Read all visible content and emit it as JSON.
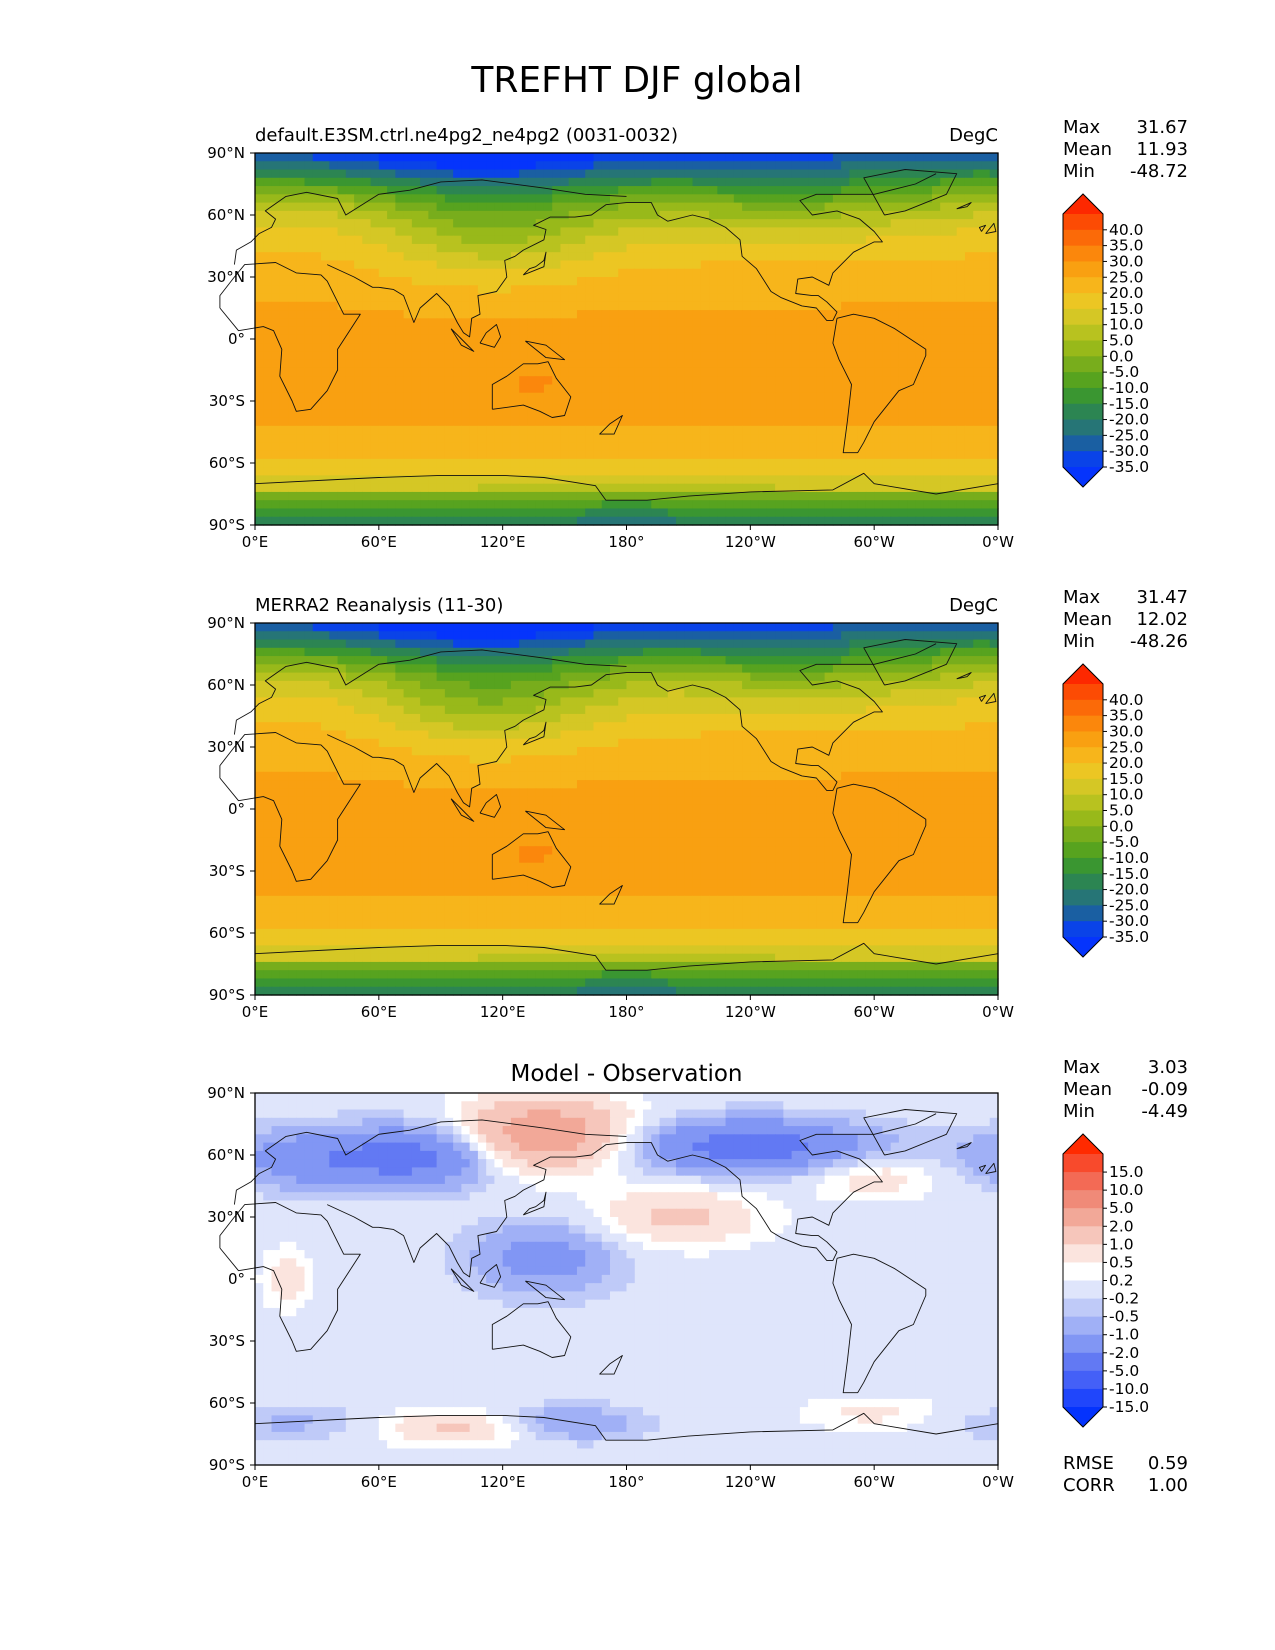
{
  "figure": {
    "title": "TREFHT DJF global"
  },
  "x_ticks": [
    "0°E",
    "60°E",
    "120°E",
    "180°",
    "120°W",
    "60°W",
    "0°W"
  ],
  "y_ticks": [
    "90°N",
    "60°N",
    "30°N",
    "0°",
    "30°S",
    "60°S",
    "90°S"
  ],
  "panels": [
    {
      "id": "test",
      "title_left": "default.E3SM.ctrl.ne4pg2_ne4pg2 (0031-0032)",
      "title_right": "DegC",
      "stats": [
        {
          "label": "Max",
          "value": "31.67"
        },
        {
          "label": "Mean",
          "value": "11.93"
        },
        {
          "label": "Min",
          "value": "-48.72"
        }
      ],
      "colorbar": {
        "labels": [
          "40.0",
          "35.0",
          "30.0",
          "25.0",
          "20.0",
          "15.0",
          "10.0",
          "5.0",
          "0.0",
          "-5.0",
          "-10.0",
          "-15.0",
          "-20.0",
          "-25.0",
          "-30.0",
          "-35.0"
        ],
        "colors": [
          "#fd2800",
          "#fc4b04",
          "#fb6a08",
          "#fb870c",
          "#f9a011",
          "#f7b51b",
          "#ecc623",
          "#d5c725",
          "#b8c21f",
          "#98b91a",
          "#78ad1c",
          "#57a31f",
          "#3a9631",
          "#2c8552",
          "#267576",
          "#1a5fa2",
          "#0a43e8",
          "#0534fc"
        ]
      },
      "variant": 0
    },
    {
      "id": "reference",
      "title_left": "MERRA2 Reanalysis (11-30)",
      "title_right": "DegC",
      "stats": [
        {
          "label": "Max",
          "value": "31.47"
        },
        {
          "label": "Mean",
          "value": "12.02"
        },
        {
          "label": "Min",
          "value": "-48.26"
        }
      ],
      "colorbar": {
        "labels": [
          "40.0",
          "35.0",
          "30.0",
          "25.0",
          "20.0",
          "15.0",
          "10.0",
          "5.0",
          "0.0",
          "-5.0",
          "-10.0",
          "-15.0",
          "-20.0",
          "-25.0",
          "-30.0",
          "-35.0"
        ],
        "colors": [
          "#fd2800",
          "#fc4b04",
          "#fb6a08",
          "#fb870c",
          "#f9a011",
          "#f7b51b",
          "#ecc623",
          "#d5c725",
          "#b8c21f",
          "#98b91a",
          "#78ad1c",
          "#57a31f",
          "#3a9631",
          "#2c8552",
          "#267576",
          "#1a5fa2",
          "#0a43e8",
          "#0534fc"
        ]
      },
      "variant": 1
    },
    {
      "id": "difference",
      "title_center": "Model - Observation",
      "stats": [
        {
          "label": "Max",
          "value": "3.03"
        },
        {
          "label": "Mean",
          "value": "-0.09"
        },
        {
          "label": "Min",
          "value": "-4.49"
        }
      ],
      "colorbar": {
        "labels": [
          "15.0",
          "10.0",
          "5.0",
          "2.0",
          "1.0",
          "0.5",
          "0.2",
          "-0.2",
          "-0.5",
          "-1.0",
          "-2.0",
          "-5.0",
          "-10.0",
          "-15.0"
        ],
        "colors": [
          "#ff2a00",
          "#f84a2c",
          "#f36a55",
          "#f08a78",
          "#f2a898",
          "#f6c6bb",
          "#fbe4de",
          "#ffffff",
          "#dfe5fb",
          "#bfcaf8",
          "#a0b0f6",
          "#8196f4",
          "#6279f3",
          "#4460f7",
          "#2046fb",
          "#0433fd"
        ]
      },
      "metrics": [
        {
          "label": "RMSE",
          "value": "0.59"
        },
        {
          "label": "CORR",
          "value": "1.00"
        }
      ]
    }
  ],
  "chart_data": [
    {
      "type": "heatmap",
      "title": "default.E3SM.ctrl.ne4pg2_ne4pg2 (0031-0032)",
      "units": "DegC",
      "variable": "TREFHT",
      "season": "DJF",
      "x_range": [
        0,
        360
      ],
      "y_range": [
        -90,
        90
      ],
      "color_levels": [
        -35,
        -30,
        -25,
        -20,
        -15,
        -10,
        -5,
        0,
        5,
        10,
        15,
        20,
        25,
        30,
        35,
        40
      ],
      "max": 31.67,
      "mean": 11.93,
      "min": -48.72
    },
    {
      "type": "heatmap",
      "title": "MERRA2 Reanalysis (11-30)",
      "units": "DegC",
      "variable": "TREFHT",
      "season": "DJF",
      "x_range": [
        0,
        360
      ],
      "y_range": [
        -90,
        90
      ],
      "color_levels": [
        -35,
        -30,
        -25,
        -20,
        -15,
        -10,
        -5,
        0,
        5,
        10,
        15,
        20,
        25,
        30,
        35,
        40
      ],
      "max": 31.47,
      "mean": 12.02,
      "min": -48.26
    },
    {
      "type": "heatmap",
      "title": "Model - Observation",
      "x_range": [
        0,
        360
      ],
      "y_range": [
        -90,
        90
      ],
      "color_levels": [
        -15,
        -10,
        -5,
        -2,
        -1,
        -0.5,
        -0.2,
        0.2,
        0.5,
        1,
        2,
        5,
        10,
        15
      ],
      "max": 3.03,
      "mean": -0.09,
      "min": -4.49,
      "rmse": 0.59,
      "corr": 1.0
    }
  ]
}
